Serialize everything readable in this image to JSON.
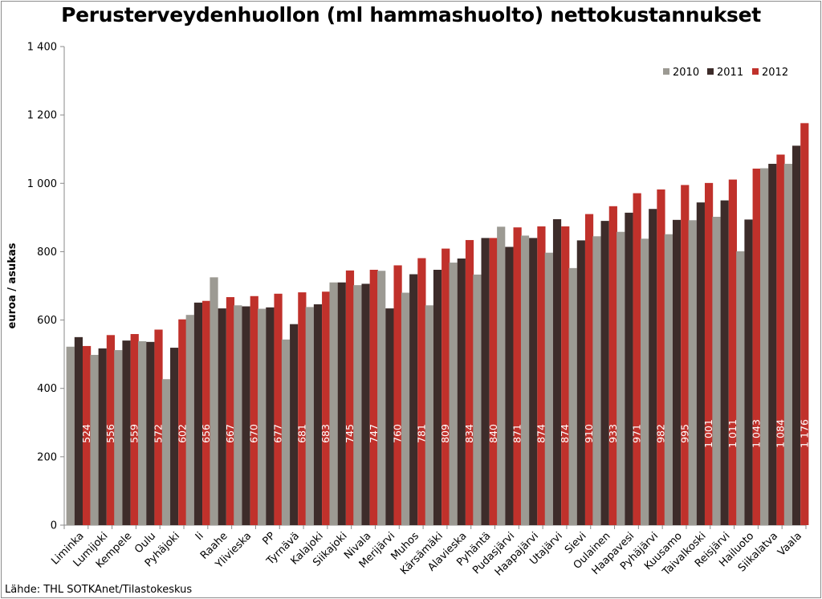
{
  "chart_data": {
    "type": "bar",
    "title": "Perusterveydenhuollon (ml hammashuolto) nettokustannukset",
    "ylabel": "euroa / asukas",
    "xlabel": "",
    "ylim": [
      0,
      1400
    ],
    "ytick_step": 200,
    "ytick_labels": [
      "0",
      "200",
      "400",
      "600",
      "800",
      "1 000",
      "1 200",
      "1 400"
    ],
    "grid": false,
    "legend_position": "top-right",
    "source": "Lähde: THL SOTKAnet/Tilastokeskus",
    "categories": [
      "Liminka",
      "Lumijoki",
      "Kempele",
      "Oulu",
      "Pyhäjoki",
      "Ii",
      "Raahe",
      "Ylivieska",
      "PP",
      "Tyrnävä",
      "Kalajoki",
      "Siikajoki",
      "Nivala",
      "Merijärvi",
      "Muhos",
      "Kärsämäki",
      "Alavieska",
      "Pyhäntä",
      "Pudasjärvi",
      "Haapajärvi",
      "Utajärvi",
      "Sievi",
      "Oulainen",
      "Haapavesi",
      "Pyhäjärvi",
      "Kuusamo",
      "Taivalkoski",
      "Reisjärvi",
      "Hailuoto",
      "Siikalatva",
      "Vaala"
    ],
    "series": [
      {
        "name": "2010",
        "color": "#9c9a93",
        "values": [
          522,
          498,
          512,
          538,
          427,
          615,
          725,
          643,
          633,
          543,
          638,
          710,
          702,
          744,
          680,
          643,
          768,
          733,
          873,
          847,
          797,
          752,
          845,
          858,
          838,
          851,
          892,
          902,
          801,
          1044,
          1057
        ]
      },
      {
        "name": "2011",
        "color": "#3d2c2a",
        "values": [
          550,
          517,
          540,
          536,
          519,
          651,
          634,
          640,
          637,
          588,
          646,
          710,
          706,
          634,
          734,
          747,
          780,
          840,
          814,
          840,
          895,
          833,
          890,
          914,
          925,
          893,
          944,
          950,
          894,
          1057,
          1110
        ]
      },
      {
        "name": "2012",
        "color": "#c0312b",
        "values": [
          524,
          556,
          559,
          572,
          602,
          656,
          667,
          670,
          677,
          681,
          683,
          745,
          747,
          760,
          781,
          809,
          834,
          840,
          871,
          874,
          874,
          910,
          933,
          971,
          982,
          995,
          1001,
          1011,
          1043,
          1084,
          1176
        ]
      }
    ],
    "data_labels": [
      "524",
      "556",
      "559",
      "572",
      "602",
      "656",
      "667",
      "670",
      "677",
      "681",
      "683",
      "745",
      "747",
      "760",
      "781",
      "809",
      "834",
      "840",
      "871",
      "874",
      "874",
      "910",
      "933",
      "971",
      "982",
      "995",
      "1 001",
      "1 011",
      "1 043",
      "1 084",
      "1 176"
    ]
  }
}
